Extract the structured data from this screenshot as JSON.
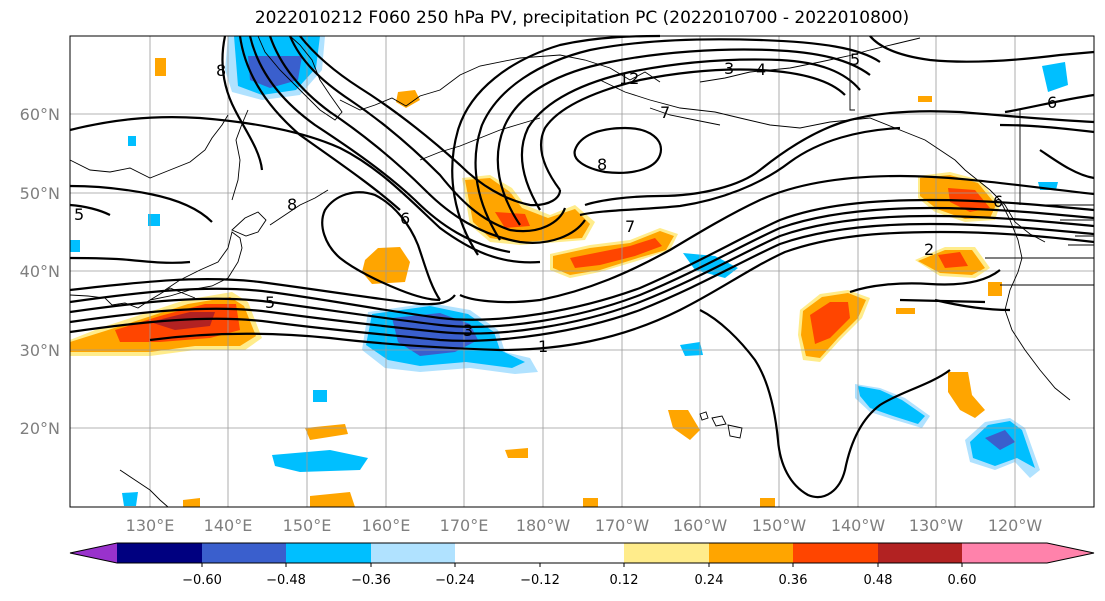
{
  "title": "2022010212 F060 250 hPa PV, precipitation PC (2022010700 - 2022010800)",
  "lat_ticks": [
    "60°N",
    "50°N",
    "40°N",
    "30°N",
    "20°N"
  ],
  "lon_ticks": [
    "130°E",
    "140°E",
    "150°E",
    "160°E",
    "170°E",
    "180°W",
    "170°W",
    "160°W",
    "150°W",
    "140°W",
    "130°W",
    "120°W"
  ],
  "colorbar": {
    "tick_labels": [
      "−0.60",
      "−0.48",
      "−0.36",
      "−0.24",
      "−0.12",
      "0.12",
      "0.24",
      "0.36",
      "0.48",
      "0.60"
    ],
    "colors": [
      "#9932cc",
      "#000080",
      "#3a5fcd",
      "#00bfff",
      "#b0e2ff",
      "#ffffff",
      "#ffec8b",
      "#ffa500",
      "#ff4500",
      "#b22222",
      "#ff82ab"
    ]
  },
  "pv_labels": [
    "8",
    "8",
    "12",
    "3",
    "4",
    "5",
    "6",
    "6",
    "7",
    "8",
    "7",
    "5",
    "5",
    "3",
    "1",
    "2",
    "6"
  ]
}
